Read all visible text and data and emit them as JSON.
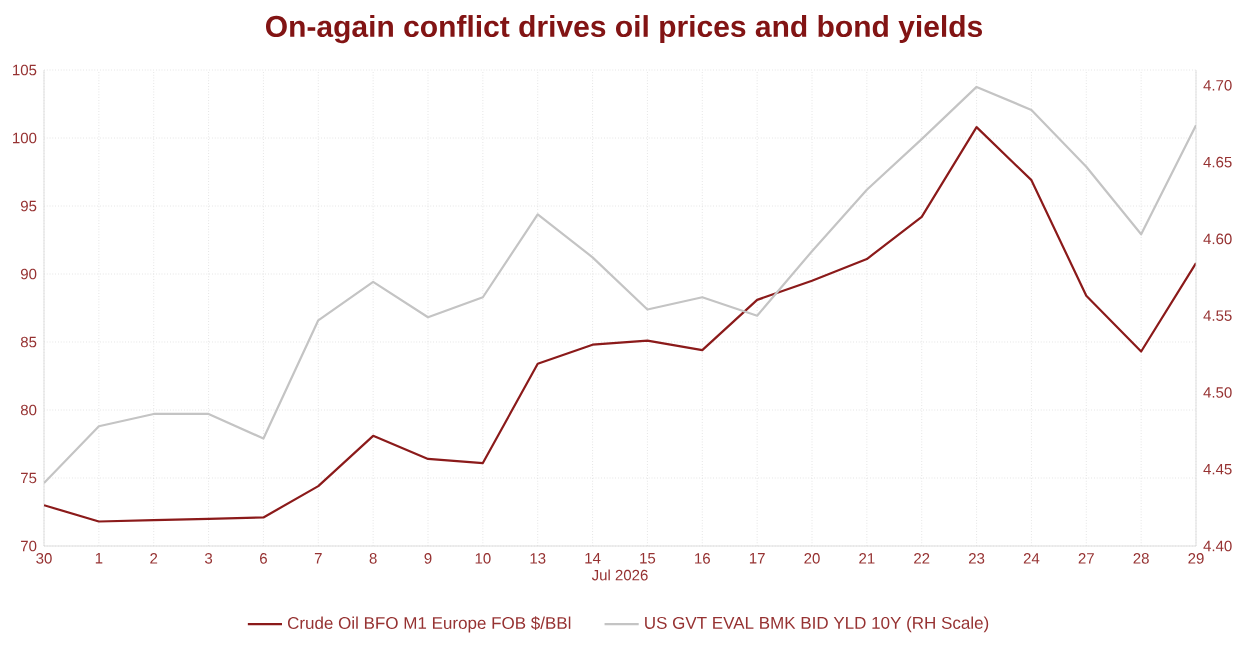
{
  "chart_data": {
    "type": "line",
    "title": "On-again conflict drives oil prices and bond yields",
    "xlabel": "Jul 2026",
    "categories": [
      "30",
      "1",
      "2",
      "3",
      "6",
      "7",
      "8",
      "9",
      "10",
      "13",
      "14",
      "15",
      "16",
      "17",
      "20",
      "21",
      "22",
      "23",
      "24",
      "27",
      "28",
      "29"
    ],
    "series": [
      {
        "name": "Crude Oil BFO M1 Europe FOB $/BBl",
        "color": "#8b1a1a",
        "values": [
          73.0,
          71.8,
          71.9,
          72.0,
          72.1,
          74.4,
          78.1,
          76.4,
          76.1,
          83.4,
          84.8,
          85.1,
          84.4,
          88.1,
          89.5,
          91.1,
          94.2,
          100.8,
          96.9,
          88.4,
          84.3,
          90.8
        ]
      },
      {
        "name": "US GVT EVAL BMK BID YLD 10Y (RH Scale)",
        "color": "#c4c4c4",
        "axis": "y2",
        "values": [
          4.441,
          4.478,
          4.486,
          4.486,
          4.47,
          4.547,
          4.572,
          4.549,
          4.562,
          4.616,
          4.588,
          4.554,
          4.562,
          4.55,
          4.592,
          4.632,
          4.665,
          4.699,
          4.684,
          4.647,
          4.603,
          4.674
        ]
      }
    ],
    "ylim": [
      70,
      105
    ],
    "yticks": [
      70,
      75,
      80,
      85,
      90,
      95,
      100,
      105
    ],
    "y2lim": [
      4.4,
      4.71
    ],
    "y2ticks": [
      {
        "value": 4.4,
        "label": "4.40"
      },
      4.45,
      {
        "value": 4.5,
        "label": "4.50"
      },
      4.55,
      {
        "value": 4.6,
        "label": "4.60"
      },
      4.65,
      {
        "value": 4.7,
        "label": "4.70"
      }
    ],
    "grid": true,
    "legend": "bottom",
    "marker": "none",
    "line_style": "solid"
  }
}
